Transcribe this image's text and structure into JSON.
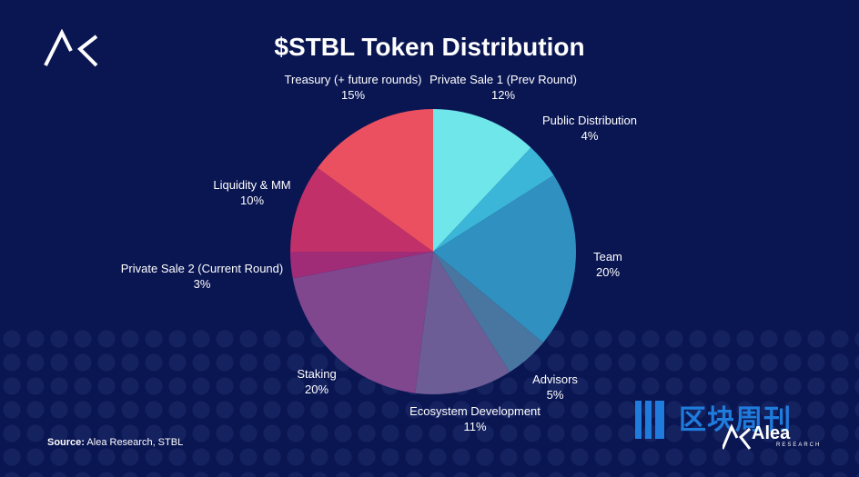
{
  "chart_data": {
    "type": "pie",
    "title": "$STBL Token Distribution",
    "slices": [
      {
        "label": "Private Sale 1 (Prev Round)",
        "value": 12,
        "display": "12%",
        "color": "#6ee6ea"
      },
      {
        "label": "Public Distribution",
        "value": 4,
        "display": "4%",
        "color": "#3bb6d8"
      },
      {
        "label": "Team",
        "value": 20,
        "display": "20%",
        "color": "#3090c0"
      },
      {
        "label": "Advisors",
        "value": 5,
        "display": "5%",
        "color": "#4876a0"
      },
      {
        "label": "Ecosystem Development",
        "value": 11,
        "display": "11%",
        "color": "#6c5d96"
      },
      {
        "label": "Staking",
        "value": 20,
        "display": "20%",
        "color": "#80468e"
      },
      {
        "label": "Private Sale 2 (Current Round)",
        "value": 3,
        "display": "3%",
        "color": "#a02c78"
      },
      {
        "label": "Liquidity & MM",
        "value": 10,
        "display": "10%",
        "color": "#c2306a"
      },
      {
        "label": "Treasury (+ future rounds)",
        "value": 15,
        "display": "15%",
        "color": "#ea5060"
      }
    ]
  },
  "source": {
    "prefix": "Source:",
    "text": "Alea Research, STBL"
  },
  "watermark": {
    "text": "区块周刊",
    "brand": "Alea",
    "brand_sub": "RESEARCH"
  },
  "colors": {
    "background": "#0a1652",
    "watermark": "#1f7bdc"
  }
}
